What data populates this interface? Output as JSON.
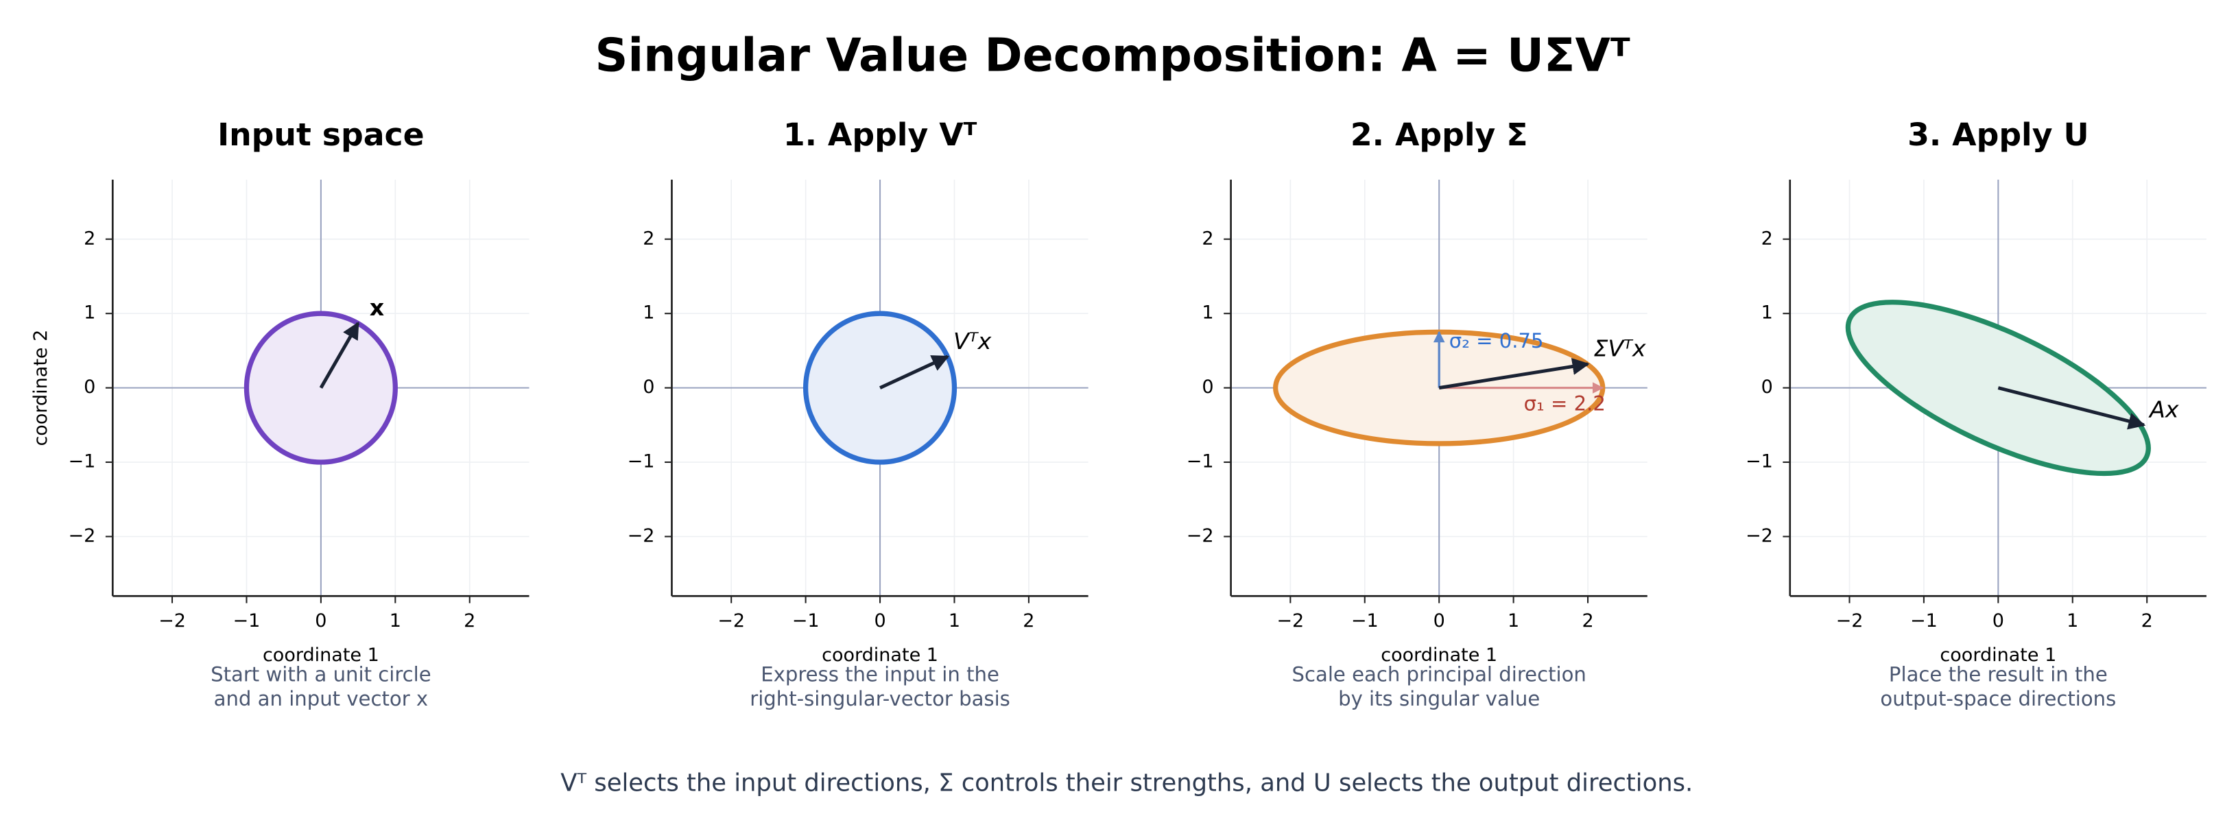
{
  "title": "Singular Value Decomposition:  A = UΣVᵀ",
  "footer": "Vᵀ selects the input directions,  Σ controls their strengths,  and U selects the output directions.",
  "chart_data": [
    {
      "type": "ellipse",
      "title": "Input space",
      "x_label": "coordinate 1",
      "y_label": "coordinate 2",
      "caption": [
        "Start with a unit circle",
        "and an input vector x"
      ],
      "xlim": [
        -2.8,
        2.8
      ],
      "ylim": [
        -2.8,
        2.8
      ],
      "xticks": [
        {
          "value": -2,
          "label": "−2"
        },
        {
          "value": -1,
          "label": "−1"
        },
        0,
        1,
        2
      ],
      "yticks": [
        {
          "value": -2,
          "label": "−2"
        },
        {
          "value": -1,
          "label": "−1"
        },
        0,
        1,
        2
      ],
      "grid": true,
      "color": "#6f42c1",
      "fill": "#efe9f8",
      "ellipse": {
        "rx": 1,
        "ry": 1,
        "angle": 0
      },
      "vector": {
        "label": "x",
        "x": 0.5,
        "y": 0.87
      }
    },
    {
      "type": "ellipse",
      "title": "1. Apply Vᵀ",
      "x_label": "coordinate 1",
      "caption": [
        "Express the input in the",
        "right-singular-vector basis"
      ],
      "xlim": [
        -2.8,
        2.8
      ],
      "ylim": [
        -2.8,
        2.8
      ],
      "xticks": [
        {
          "value": -2,
          "label": "−2"
        },
        {
          "value": -1,
          "label": "−1"
        },
        0,
        1,
        2
      ],
      "yticks": [
        {
          "value": -2,
          "label": "−2"
        },
        {
          "value": -1,
          "label": "−1"
        },
        0,
        1,
        2
      ],
      "grid": true,
      "color": "#2f6fd0",
      "fill": "#e8eef9",
      "ellipse": {
        "rx": 1,
        "ry": 1,
        "angle": 0
      },
      "vector": {
        "label": "Vᵀx",
        "x": 0.91,
        "y": 0.42
      }
    },
    {
      "type": "ellipse",
      "title": "2. Apply Σ",
      "x_label": "coordinate 1",
      "caption": [
        "Scale each principal direction",
        "by its singular value"
      ],
      "xlim": [
        -2.8,
        2.8
      ],
      "ylim": [
        -2.8,
        2.8
      ],
      "xticks": [
        {
          "value": -2,
          "label": "−2"
        },
        {
          "value": -1,
          "label": "−1"
        },
        0,
        1,
        2
      ],
      "yticks": [
        {
          "value": -2,
          "label": "−2"
        },
        {
          "value": -1,
          "label": "−1"
        },
        0,
        1,
        2
      ],
      "grid": true,
      "color": "#e08a30",
      "fill": "#fbf1e7",
      "ellipse": {
        "rx": 2.2,
        "ry": 0.75,
        "angle": 0
      },
      "vector": {
        "label": "ΣVᵀx",
        "x": 2.0,
        "y": 0.32
      },
      "singular_values": [
        {
          "value": 2.2,
          "value_label": "σ₁ = 2.2",
          "color": "#b03a2e",
          "axis": "x"
        },
        {
          "value": 0.75,
          "value_label": "σ₂ = 0.75",
          "color": "#2f6fd0",
          "axis": "y"
        }
      ]
    },
    {
      "type": "ellipse",
      "title": "3. Apply U",
      "x_label": "coordinate 1",
      "caption": [
        "Place the result in the",
        "output-space directions"
      ],
      "xlim": [
        -2.8,
        2.8
      ],
      "ylim": [
        -2.8,
        2.8
      ],
      "xticks": [
        {
          "value": -2,
          "label": "−2"
        },
        {
          "value": -1,
          "label": "−1"
        },
        0,
        1,
        2
      ],
      "yticks": [
        {
          "value": -2,
          "label": "−2"
        },
        {
          "value": -1,
          "label": "−1"
        },
        0,
        1,
        2
      ],
      "grid": true,
      "color": "#228b64",
      "fill": "#e4f2ec",
      "ellipse": {
        "rx": 2.2,
        "ry": 0.75,
        "angle": -25
      },
      "vector": {
        "label": "Ax",
        "x": 1.96,
        "y": -0.5
      }
    }
  ]
}
